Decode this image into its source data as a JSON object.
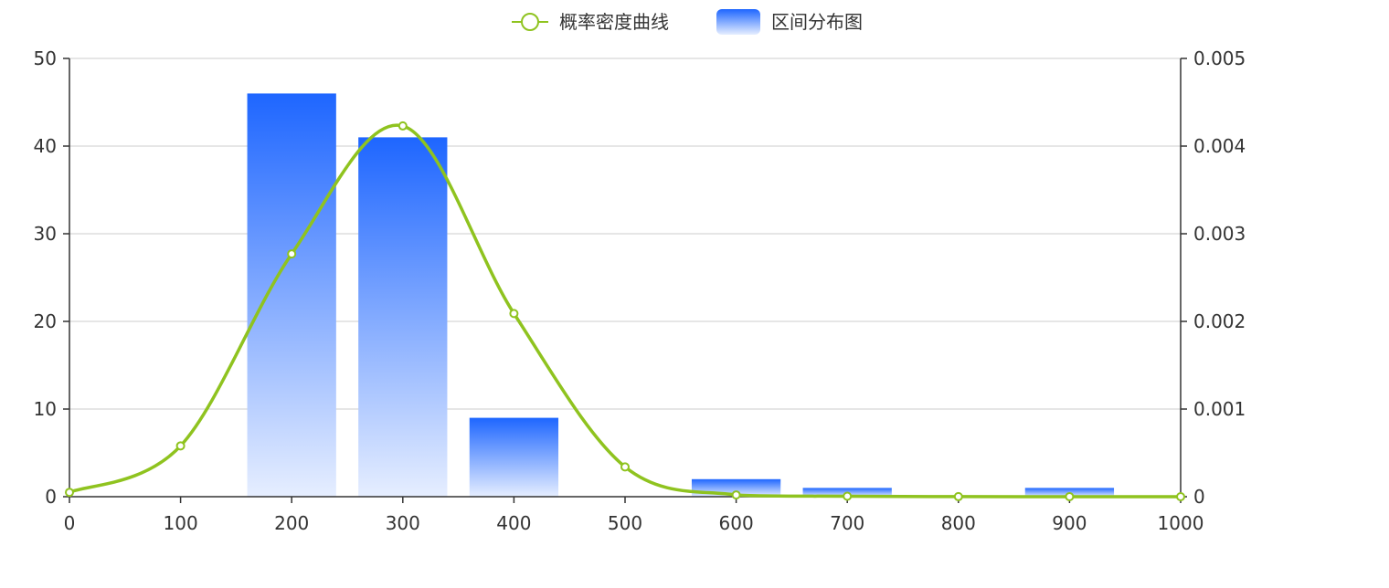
{
  "chart_data": {
    "type": "bar",
    "title": "",
    "xlabel": "",
    "ylabel": "",
    "legend": {
      "position": "top-center",
      "items": [
        {
          "name": "概率密度曲线",
          "kind": "line"
        },
        {
          "name": "区间分布图",
          "kind": "bar"
        }
      ]
    },
    "x_axis": {
      "range": [
        0,
        1000
      ],
      "ticks": [
        "0",
        "100",
        "200",
        "300",
        "400",
        "500",
        "600",
        "700",
        "800",
        "900",
        "1000"
      ]
    },
    "y_axis_left": {
      "range": [
        0,
        50
      ],
      "ticks": [
        "0",
        "10",
        "20",
        "30",
        "40",
        "50"
      ],
      "grid": true
    },
    "y_axis_right": {
      "range": [
        0,
        0.005
      ],
      "ticks": [
        "0",
        "0.001",
        "0.002",
        "0.003",
        "0.004",
        "0.005"
      ]
    },
    "series": [
      {
        "name": "区间分布图",
        "type": "bar",
        "axis": "left",
        "x": [
          200,
          300,
          400,
          600,
          700,
          900
        ],
        "values": [
          46,
          41,
          9,
          2,
          1,
          1
        ],
        "color_top": "#1e66ff",
        "color_bottom": "#e6eeff"
      },
      {
        "name": "概率密度曲线",
        "type": "line",
        "axis": "right",
        "smooth": true,
        "x": [
          0,
          100,
          200,
          300,
          400,
          500,
          600,
          700,
          800,
          900,
          1000
        ],
        "values": [
          5e-05,
          0.00058,
          0.00277,
          0.00423,
          0.00209,
          0.00034,
          2e-05,
          5e-06,
          1e-06,
          5e-07,
          0.0
        ],
        "color": "#8fc31f"
      }
    ]
  }
}
